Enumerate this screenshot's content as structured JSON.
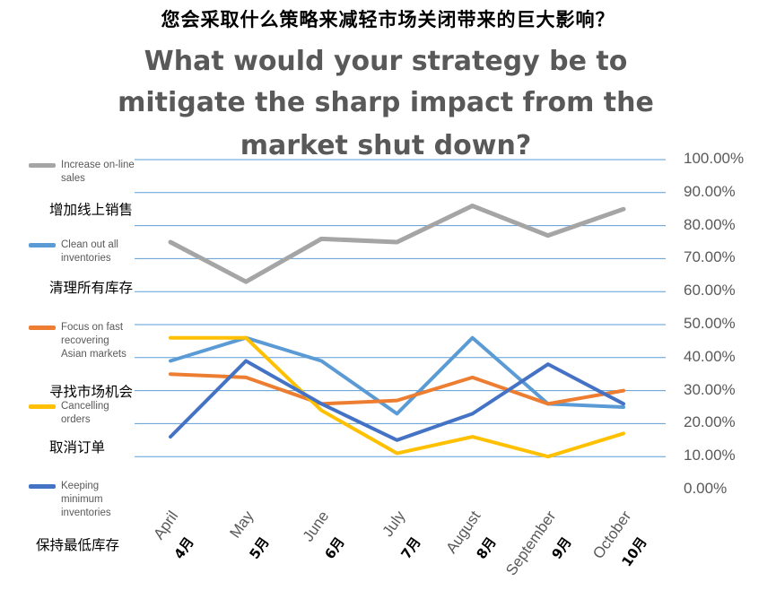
{
  "chart_data": {
    "type": "line",
    "title_cn": "您会采取什么策略来减轻市场关闭带来的巨大影响？",
    "title_en_lines": [
      "What would your strategy be to",
      "mitigate the sharp impact from the",
      "market shut down?"
    ],
    "categories_en": [
      "April",
      "May",
      "June",
      "July",
      "August",
      "September",
      "October"
    ],
    "categories_cn": [
      "4月",
      "5月",
      "6月",
      "7月",
      "8月",
      "9月",
      "10月"
    ],
    "ylim": [
      0,
      100
    ],
    "yticks": [
      "0.00%",
      "10.00%",
      "20.00%",
      "30.00%",
      "40.00%",
      "50.00%",
      "60.00%",
      "70.00%",
      "80.00%",
      "90.00%",
      "100.00%"
    ],
    "grid": true,
    "legend_position": "left",
    "series": [
      {
        "name": "Increase on-line sales",
        "name_cn": "增加线上销售",
        "color": "#a5a5a5",
        "values": [
          75,
          63,
          76,
          75,
          86,
          77,
          85
        ]
      },
      {
        "name": "Clean out all inventories",
        "name_cn": "清理所有库存",
        "color": "#5b9bd5",
        "values": [
          39,
          46,
          39,
          23,
          46,
          26,
          25
        ]
      },
      {
        "name": "Focus on fast recovering Asian markets",
        "name_cn": "寻找市场机会",
        "color": "#ed7d31",
        "values": [
          35,
          34,
          26,
          27,
          34,
          26,
          30
        ]
      },
      {
        "name": "Cancelling orders",
        "name_cn": "取消订单",
        "color": "#ffc000",
        "values": [
          46,
          46,
          24,
          11,
          16,
          10,
          17
        ]
      },
      {
        "name": "Keeping minimum inventories",
        "name_cn": "保持最低库存",
        "color": "#4472c4",
        "values": [
          16,
          39,
          26,
          15,
          23,
          38,
          26
        ]
      }
    ]
  }
}
